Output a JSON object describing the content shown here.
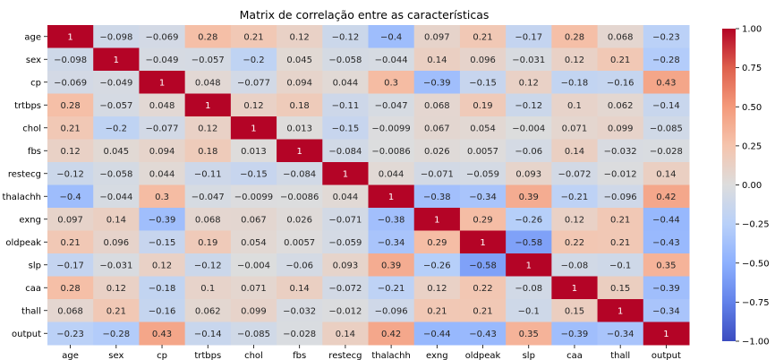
{
  "chart_data": {
    "type": "heatmap",
    "title": "Matrix de correlação entre as características",
    "labels": [
      "age",
      "sex",
      "cp",
      "trtbps",
      "chol",
      "fbs",
      "restecg",
      "thalachh",
      "exng",
      "oldpeak",
      "slp",
      "caa",
      "thall",
      "output"
    ],
    "matrix": [
      [
        1,
        -0.098,
        -0.069,
        0.28,
        0.21,
        0.12,
        -0.12,
        -0.4,
        0.097,
        0.21,
        -0.17,
        0.28,
        0.068,
        -0.23
      ],
      [
        -0.098,
        1,
        -0.049,
        -0.057,
        -0.2,
        0.045,
        -0.058,
        -0.044,
        0.14,
        0.096,
        -0.031,
        0.12,
        0.21,
        -0.28
      ],
      [
        -0.069,
        -0.049,
        1,
        0.048,
        -0.077,
        0.094,
        0.044,
        0.3,
        -0.39,
        -0.15,
        0.12,
        -0.18,
        -0.16,
        0.43
      ],
      [
        0.28,
        -0.057,
        0.048,
        1,
        0.12,
        0.18,
        -0.11,
        -0.047,
        0.068,
        0.19,
        -0.12,
        0.1,
        0.062,
        -0.14
      ],
      [
        0.21,
        -0.2,
        -0.077,
        0.12,
        1,
        0.013,
        -0.15,
        -0.0099,
        0.067,
        0.054,
        -0.004,
        0.071,
        0.099,
        -0.085
      ],
      [
        0.12,
        0.045,
        0.094,
        0.18,
        0.013,
        1,
        -0.084,
        -0.0086,
        0.026,
        0.0057,
        -0.06,
        0.14,
        -0.032,
        -0.028
      ],
      [
        -0.12,
        -0.058,
        0.044,
        -0.11,
        -0.15,
        -0.084,
        1,
        0.044,
        -0.071,
        -0.059,
        0.093,
        -0.072,
        -0.012,
        0.14
      ],
      [
        -0.4,
        -0.044,
        0.3,
        -0.047,
        -0.0099,
        -0.0086,
        0.044,
        1,
        -0.38,
        -0.34,
        0.39,
        -0.21,
        -0.096,
        0.42
      ],
      [
        0.097,
        0.14,
        -0.39,
        0.068,
        0.067,
        0.026,
        -0.071,
        -0.38,
        1,
        0.29,
        -0.26,
        0.12,
        0.21,
        -0.44
      ],
      [
        0.21,
        0.096,
        -0.15,
        0.19,
        0.054,
        0.0057,
        -0.059,
        -0.34,
        0.29,
        1,
        -0.58,
        0.22,
        0.21,
        -0.43
      ],
      [
        -0.17,
        -0.031,
        0.12,
        -0.12,
        -0.004,
        -0.06,
        0.093,
        0.39,
        -0.26,
        -0.58,
        1,
        -0.08,
        -0.1,
        0.35
      ],
      [
        0.28,
        0.12,
        -0.18,
        0.1,
        0.071,
        0.14,
        -0.072,
        -0.21,
        0.12,
        0.22,
        -0.08,
        1,
        0.15,
        -0.39
      ],
      [
        0.068,
        0.21,
        -0.16,
        0.062,
        0.099,
        -0.032,
        -0.012,
        -0.096,
        0.21,
        0.21,
        -0.1,
        0.15,
        1,
        -0.34
      ],
      [
        -0.23,
        -0.28,
        0.43,
        -0.14,
        -0.085,
        -0.028,
        0.14,
        0.42,
        -0.44,
        -0.43,
        0.35,
        -0.39,
        -0.34,
        1
      ]
    ],
    "colorbar": {
      "min": -1,
      "max": 1,
      "ticks": [
        1,
        0.75,
        0.5,
        0.25,
        0,
        -0.25,
        -0.5,
        -0.75,
        -1
      ],
      "tick_labels": [
        "1.00",
        "0.75",
        "0.50",
        "0.25",
        "0.00",
        "−0.25",
        "−0.50",
        "−0.75",
        "−1.00"
      ],
      "colormap": "coolwarm",
      "low_color": "#3b4cc0",
      "mid_color": "#dddddd",
      "high_color": "#b40426"
    }
  }
}
